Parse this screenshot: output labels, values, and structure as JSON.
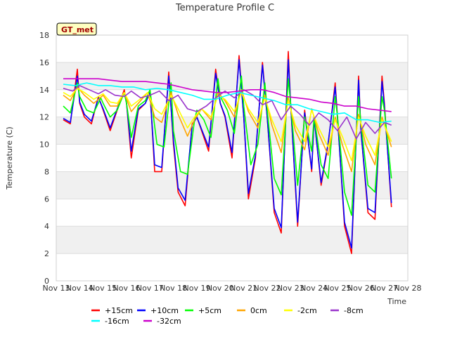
{
  "chart_data": {
    "type": "line",
    "title": "Temperature Profile C",
    "xlabel": "Time",
    "ylabel": "Temperature (C)",
    "badge": "GT_met",
    "ylim": [
      0,
      18
    ],
    "yticks": [
      0,
      2,
      4,
      6,
      8,
      10,
      12,
      14,
      16,
      18
    ],
    "xlim": [
      13,
      28
    ],
    "x_ticks": [
      {
        "x": 13,
        "label": "Nov 13"
      },
      {
        "x": 14,
        "label": "Nov 14"
      },
      {
        "x": 15,
        "label": "Nov 15"
      },
      {
        "x": 16,
        "label": "Nov 16"
      },
      {
        "x": 17,
        "label": "Nov 17"
      },
      {
        "x": 18,
        "label": "Nov 18"
      },
      {
        "x": 19,
        "label": "Nov 19"
      },
      {
        "x": 20,
        "label": "Nov 20"
      },
      {
        "x": 21,
        "label": "Nov 21"
      },
      {
        "x": 22,
        "label": "Nov 22"
      },
      {
        "x": 23,
        "label": "Nov 23"
      },
      {
        "x": 24,
        "label": "Nov 24"
      },
      {
        "x": 25,
        "label": "Nov 25"
      },
      {
        "x": 26,
        "label": "Nov 26"
      },
      {
        "x": 27,
        "label": "Nov 27"
      },
      {
        "x": 28,
        "label": "Nov 28"
      }
    ],
    "grid": "horizontal bands",
    "legend_position": "bottom",
    "series": [
      {
        "name": "+15cm",
        "color": "#ff0000",
        "x": [
          13.3,
          13.6,
          13.9,
          14.0,
          14.2,
          14.5,
          14.8,
          15.0,
          15.3,
          15.6,
          15.9,
          16.0,
          16.2,
          16.5,
          16.8,
          17.0,
          17.2,
          17.5,
          17.8,
          18.0,
          18.2,
          18.5,
          18.8,
          19.0,
          19.2,
          19.5,
          19.8,
          20.0,
          20.2,
          20.5,
          20.8,
          21.0,
          21.2,
          21.5,
          21.8,
          22.0,
          22.3,
          22.6,
          22.9,
          23.0,
          23.3,
          23.6,
          23.9,
          24.0,
          24.3,
          24.6,
          24.9,
          25.0,
          25.3,
          25.6,
          25.9,
          26.0,
          26.3,
          26.6,
          26.9,
          27.0,
          27.3
        ],
        "values": [
          11.8,
          11.5,
          15.5,
          13.0,
          12.0,
          11.5,
          13.5,
          12.5,
          11.0,
          12.5,
          14.0,
          13.0,
          9.0,
          12.5,
          13.0,
          14.0,
          8.0,
          8.0,
          15.3,
          10.0,
          6.5,
          5.5,
          11.5,
          12.0,
          11.0,
          9.5,
          15.5,
          13.0,
          12.0,
          9.0,
          16.5,
          12.0,
          6.0,
          9.0,
          16.0,
          12.0,
          5.0,
          3.5,
          16.8,
          13.0,
          4.0,
          12.5,
          8.0,
          12.0,
          7.0,
          10.0,
          14.5,
          12.0,
          4.0,
          2.0,
          15.0,
          11.0,
          5.0,
          4.5,
          15.0,
          13.0,
          5.4
        ]
      },
      {
        "name": "+10cm",
        "color": "#0000ff",
        "x": [
          13.3,
          13.6,
          13.9,
          14.0,
          14.2,
          14.5,
          14.8,
          15.0,
          15.3,
          15.6,
          15.9,
          16.0,
          16.2,
          16.5,
          16.8,
          17.0,
          17.2,
          17.5,
          17.8,
          18.0,
          18.2,
          18.5,
          18.8,
          19.0,
          19.2,
          19.5,
          19.8,
          20.0,
          20.2,
          20.5,
          20.8,
          21.0,
          21.2,
          21.5,
          21.8,
          22.0,
          22.3,
          22.6,
          22.9,
          23.0,
          23.3,
          23.6,
          23.9,
          24.0,
          24.3,
          24.6,
          24.9,
          25.0,
          25.3,
          25.6,
          25.9,
          26.0,
          26.3,
          26.6,
          26.9,
          27.0,
          27.3
        ],
        "values": [
          11.9,
          11.6,
          15.0,
          13.1,
          12.2,
          11.7,
          13.4,
          12.6,
          11.2,
          12.6,
          13.8,
          13.0,
          9.5,
          12.6,
          13.0,
          13.8,
          8.5,
          8.3,
          15.0,
          10.3,
          6.8,
          5.9,
          11.4,
          12.0,
          11.1,
          9.8,
          15.2,
          13.0,
          12.1,
          9.4,
          16.2,
          12.0,
          6.4,
          9.2,
          15.8,
          12.0,
          5.3,
          3.9,
          16.2,
          13.0,
          4.3,
          12.3,
          8.2,
          11.9,
          7.2,
          10.1,
          14.2,
          11.9,
          4.3,
          2.4,
          14.7,
          11.0,
          5.3,
          5.0,
          14.6,
          12.8,
          5.7
        ]
      },
      {
        "name": "+5cm",
        "color": "#00ff00",
        "x": [
          13.3,
          13.6,
          13.9,
          14.0,
          14.3,
          14.6,
          14.9,
          15.0,
          15.3,
          15.6,
          15.9,
          16.0,
          16.2,
          16.5,
          16.8,
          17.0,
          17.3,
          17.6,
          17.9,
          18.0,
          18.3,
          18.6,
          18.9,
          19.0,
          19.3,
          19.6,
          19.9,
          20.0,
          20.3,
          20.6,
          20.9,
          21.0,
          21.3,
          21.6,
          21.9,
          22.0,
          22.3,
          22.6,
          22.9,
          23.0,
          23.3,
          23.6,
          23.9,
          24.0,
          24.3,
          24.6,
          24.9,
          25.0,
          25.3,
          25.6,
          25.9,
          26.0,
          26.3,
          26.6,
          26.9,
          27.0,
          27.3
        ],
        "values": [
          12.8,
          12.3,
          14.5,
          13.5,
          12.5,
          12.3,
          13.4,
          13.0,
          12.0,
          12.5,
          13.8,
          13.0,
          10.5,
          12.8,
          13.2,
          14.0,
          10.0,
          9.8,
          14.5,
          11.0,
          8.0,
          7.8,
          11.8,
          12.5,
          11.8,
          10.5,
          14.8,
          13.5,
          12.5,
          10.8,
          15.0,
          12.8,
          8.5,
          10.0,
          14.5,
          12.5,
          7.5,
          6.3,
          14.8,
          13.0,
          7.0,
          12.0,
          9.5,
          12.0,
          8.5,
          7.5,
          13.5,
          12.0,
          6.5,
          4.8,
          13.5,
          11.5,
          7.0,
          6.5,
          13.5,
          12.5,
          7.5
        ]
      },
      {
        "name": "0cm",
        "color": "#ffa500",
        "x": [
          13.3,
          13.6,
          13.9,
          14.2,
          14.6,
          15.0,
          15.3,
          15.6,
          15.9,
          16.2,
          16.5,
          16.9,
          17.2,
          17.5,
          17.9,
          18.2,
          18.6,
          18.9,
          19.2,
          19.6,
          19.9,
          20.2,
          20.6,
          20.9,
          21.2,
          21.6,
          21.9,
          22.2,
          22.6,
          22.9,
          23.2,
          23.6,
          23.9,
          24.2,
          24.6,
          24.9,
          25.2,
          25.6,
          25.9,
          26.2,
          26.6,
          26.9,
          27.3
        ],
        "values": [
          13.6,
          13.2,
          14.2,
          13.6,
          13.0,
          13.6,
          12.8,
          12.8,
          13.8,
          12.4,
          13.0,
          13.8,
          12.0,
          11.6,
          13.8,
          12.2,
          10.6,
          11.8,
          12.6,
          11.8,
          13.8,
          13.2,
          12.0,
          14.0,
          12.4,
          11.2,
          13.6,
          11.4,
          9.4,
          13.4,
          11.0,
          9.6,
          12.6,
          10.8,
          9.2,
          12.0,
          10.0,
          8.0,
          12.2,
          10.0,
          8.5,
          12.0,
          9.8
        ]
      },
      {
        "name": "-2cm",
        "color": "#ffff00",
        "x": [
          13.3,
          13.6,
          13.9,
          14.2,
          14.6,
          15.0,
          15.3,
          15.6,
          15.9,
          16.2,
          16.5,
          16.9,
          17.2,
          17.5,
          17.9,
          18.2,
          18.6,
          18.9,
          19.2,
          19.6,
          19.9,
          20.2,
          20.6,
          20.9,
          21.2,
          21.6,
          21.9,
          22.2,
          22.6,
          22.9,
          23.2,
          23.6,
          23.9,
          24.2,
          24.6,
          24.9,
          25.2,
          25.6,
          25.9,
          26.2,
          26.6,
          26.9,
          27.3
        ],
        "values": [
          13.8,
          13.5,
          14.1,
          13.8,
          13.3,
          13.7,
          13.1,
          13.0,
          13.8,
          12.8,
          13.2,
          13.8,
          12.6,
          12.2,
          13.6,
          12.6,
          11.2,
          12.0,
          12.6,
          12.0,
          13.6,
          13.3,
          12.4,
          13.8,
          12.6,
          11.6,
          13.4,
          11.8,
          10.2,
          13.2,
          11.4,
          10.2,
          12.5,
          11.2,
          9.8,
          11.8,
          10.6,
          8.8,
          12.0,
          10.6,
          9.2,
          11.8,
          10.2
        ]
      },
      {
        "name": "-8cm",
        "color": "#9933cc",
        "x": [
          13.3,
          13.7,
          14.0,
          14.4,
          14.8,
          15.1,
          15.5,
          15.9,
          16.2,
          16.6,
          17.0,
          17.4,
          17.8,
          18.2,
          18.6,
          19.0,
          19.4,
          19.8,
          20.2,
          20.6,
          21.0,
          21.4,
          21.8,
          22.2,
          22.6,
          23.0,
          23.4,
          23.8,
          24.2,
          24.6,
          25.0,
          25.4,
          25.8,
          26.2,
          26.6,
          27.0,
          27.3
        ],
        "values": [
          14.1,
          13.9,
          14.3,
          14.0,
          13.7,
          14.0,
          13.6,
          13.5,
          13.9,
          13.4,
          13.6,
          13.9,
          13.2,
          13.6,
          12.6,
          12.4,
          12.8,
          13.4,
          13.9,
          13.4,
          14.0,
          13.6,
          12.9,
          13.2,
          11.8,
          12.8,
          12.2,
          11.4,
          12.3,
          11.8,
          11.0,
          12.0,
          10.4,
          11.6,
          10.8,
          11.6,
          11.4
        ]
      },
      {
        "name": "-16cm",
        "color": "#00ffff",
        "x": [
          13.3,
          13.8,
          14.3,
          14.8,
          15.3,
          15.8,
          16.3,
          16.8,
          17.3,
          17.8,
          18.3,
          18.8,
          19.3,
          19.8,
          20.3,
          20.8,
          21.3,
          21.8,
          22.3,
          22.8,
          23.3,
          23.8,
          24.3,
          24.8,
          25.3,
          25.8,
          26.3,
          26.8,
          27.3
        ],
        "values": [
          14.4,
          14.3,
          14.5,
          14.3,
          14.3,
          14.2,
          14.2,
          14.0,
          14.1,
          14.0,
          13.8,
          13.6,
          13.3,
          13.3,
          13.6,
          13.8,
          13.6,
          13.4,
          13.2,
          12.9,
          12.9,
          12.6,
          12.4,
          12.2,
          12.3,
          11.8,
          11.8,
          11.6,
          11.7
        ]
      },
      {
        "name": "-32cm",
        "color": "#cc00cc",
        "x": [
          13.3,
          13.8,
          14.3,
          14.8,
          15.3,
          15.8,
          16.3,
          16.8,
          17.3,
          17.8,
          18.3,
          18.8,
          19.3,
          19.8,
          20.3,
          20.8,
          21.3,
          21.8,
          22.3,
          22.8,
          23.3,
          23.8,
          24.3,
          24.8,
          25.3,
          25.8,
          26.3,
          26.8,
          27.3
        ],
        "values": [
          14.8,
          14.8,
          14.8,
          14.8,
          14.7,
          14.6,
          14.6,
          14.6,
          14.5,
          14.4,
          14.2,
          14.0,
          13.9,
          13.8,
          13.8,
          13.9,
          14.0,
          14.0,
          13.8,
          13.5,
          13.4,
          13.3,
          13.1,
          13.0,
          12.8,
          12.8,
          12.6,
          12.5,
          12.4
        ]
      }
    ]
  }
}
